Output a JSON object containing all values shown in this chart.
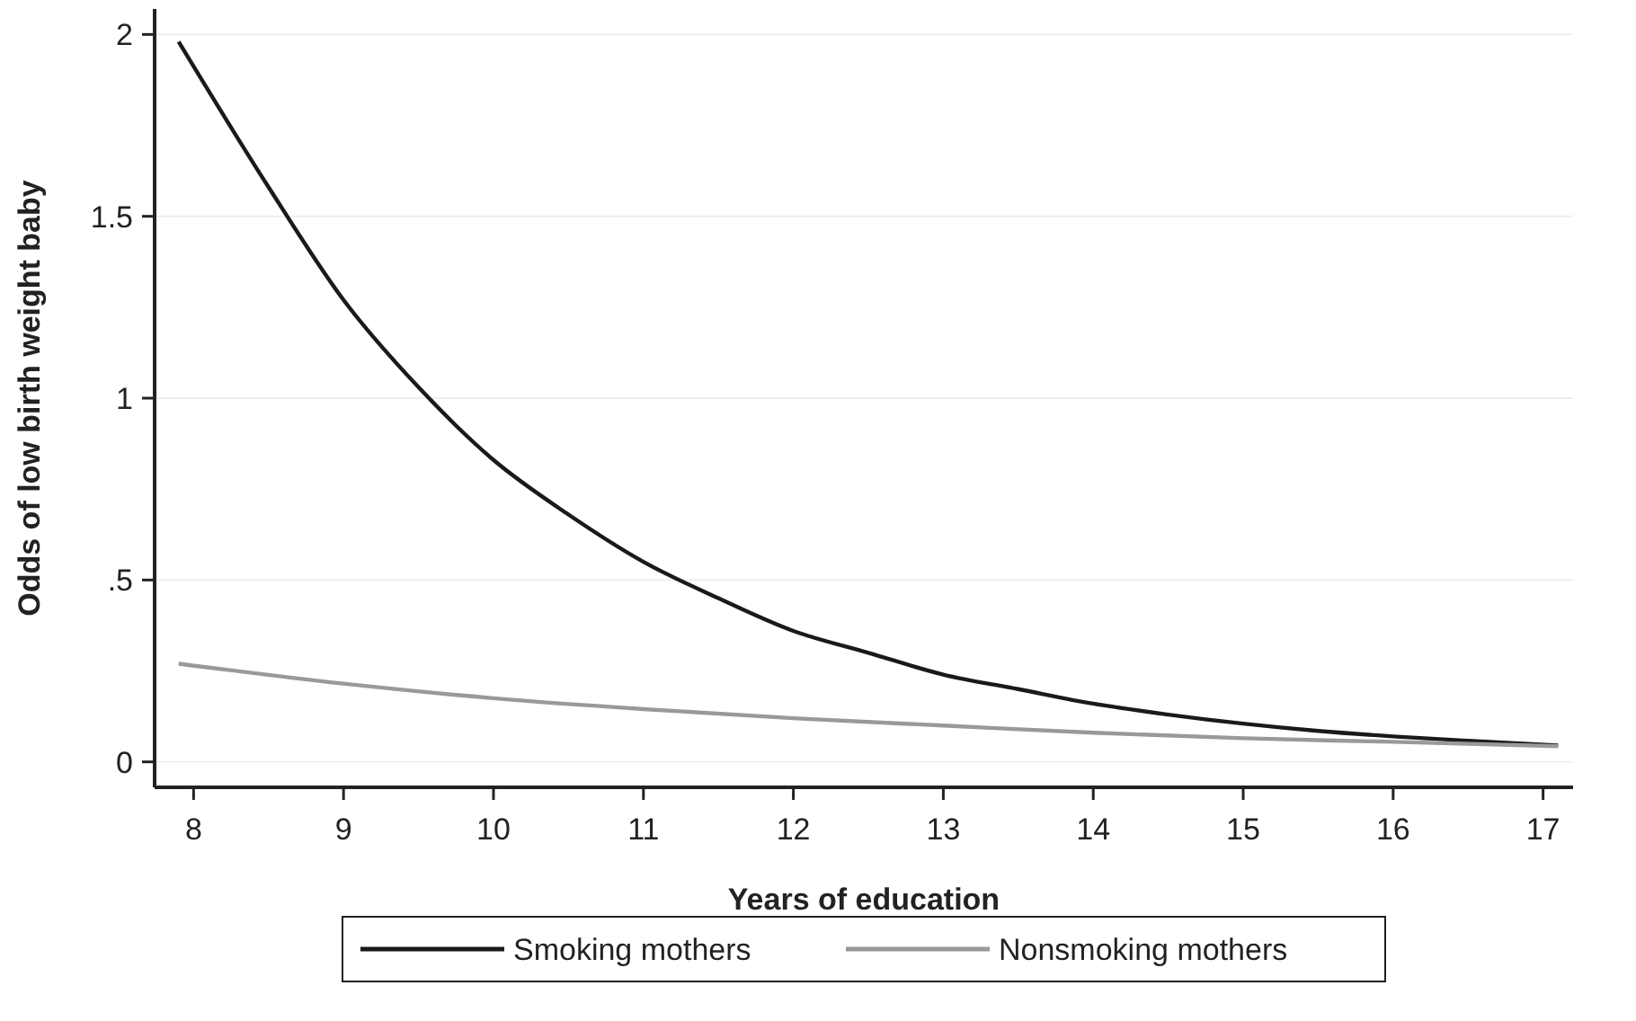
{
  "chart_data": {
    "type": "line",
    "xlabel": "Years of education",
    "ylabel": "Odds of low birth weight baby",
    "xlim": [
      7.74,
      17.2
    ],
    "xticks": [
      8,
      9,
      10,
      11,
      12,
      13,
      14,
      15,
      16,
      17
    ],
    "ylim": [
      -0.07,
      2.07
    ],
    "yticks": [
      0,
      {
        "value": 0.5,
        "label": ".5"
      },
      1,
      1.5,
      2
    ],
    "grid": "y",
    "legend": "bottom",
    "marker": "none",
    "line_style": "solid",
    "series": [
      {
        "name": "Smoking mothers",
        "color": "#1a1a1a",
        "x": [
          7.9,
          8.5,
          9,
          9.5,
          10,
          10.5,
          11,
          11.5,
          12,
          12.5,
          13,
          13.5,
          14,
          14.5,
          15,
          15.5,
          16,
          16.5,
          17.1
        ],
        "values": [
          1.98,
          1.58,
          1.27,
          1.03,
          0.83,
          0.68,
          0.55,
          0.45,
          0.36,
          0.3,
          0.24,
          0.2,
          0.16,
          0.13,
          0.105,
          0.085,
          0.07,
          0.058,
          0.045
        ]
      },
      {
        "name": "Nonsmoking mothers",
        "color": "#999999",
        "x": [
          7.9,
          9,
          10,
          11,
          12,
          13,
          14,
          15,
          16,
          17.1
        ],
        "values": [
          0.27,
          0.215,
          0.175,
          0.145,
          0.12,
          0.1,
          0.08,
          0.065,
          0.055,
          0.043
        ]
      }
    ]
  }
}
